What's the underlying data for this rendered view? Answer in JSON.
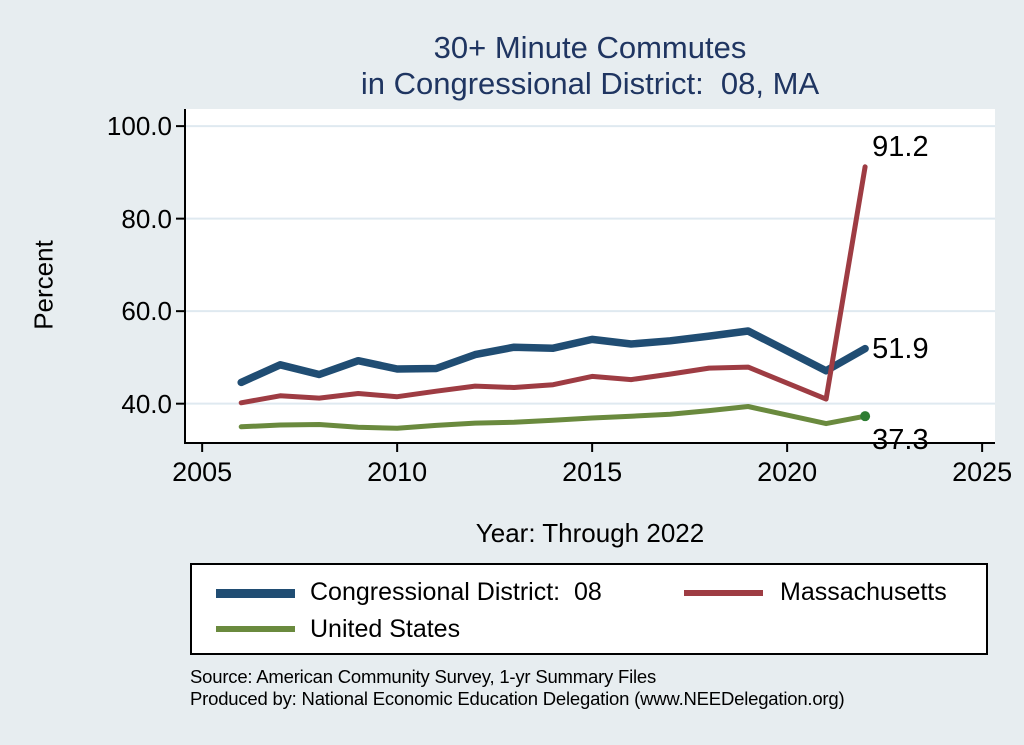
{
  "title": {
    "line1": "30+ Minute Commutes",
    "line2": "in Congressional District:  08, MA",
    "color": "#1f3561"
  },
  "chart_data": {
    "type": "line",
    "x": [
      2006,
      2007,
      2008,
      2009,
      2010,
      2011,
      2012,
      2013,
      2014,
      2015,
      2016,
      2017,
      2018,
      2019,
      2021,
      2022
    ],
    "series": [
      {
        "name": "Congressional District:  08",
        "color": "#204d73",
        "line_width": 7.5,
        "values": [
          44.6,
          48.4,
          46.3,
          49.3,
          47.5,
          47.6,
          50.6,
          52.2,
          52.0,
          53.9,
          52.9,
          53.6,
          54.6,
          55.7,
          47.1,
          51.9
        ],
        "end_label": "51.9"
      },
      {
        "name": "Massachusetts",
        "color": "#9e3c43",
        "line_width": 5,
        "values": [
          40.2,
          41.7,
          41.2,
          42.2,
          41.5,
          42.7,
          43.8,
          43.5,
          44.1,
          45.9,
          45.2,
          46.4,
          47.7,
          47.9,
          41.0,
          91.2
        ],
        "end_label": "91.2"
      },
      {
        "name": "United States",
        "color": "#6a8a3e",
        "line_width": 5,
        "values": [
          35.0,
          35.4,
          35.5,
          34.9,
          34.7,
          35.3,
          35.8,
          36.0,
          36.4,
          36.9,
          37.3,
          37.7,
          38.5,
          39.4,
          35.7,
          37.3
        ],
        "end_label": "37.3",
        "end_dot_color": "#2e7d32"
      }
    ],
    "title": "30+ Minute Commutes in Congressional District: 08, MA",
    "xlabel": "Year: Through 2022",
    "ylabel": "Percent",
    "x_ticks": [
      "2005",
      "2010",
      "2015",
      "2020",
      "2025"
    ],
    "x_tick_values": [
      2005,
      2010,
      2015,
      2020,
      2025
    ],
    "y_ticks": [
      "40.0",
      "60.0",
      "80.0",
      "100.0"
    ],
    "y_tick_values": [
      40,
      60,
      80,
      100
    ],
    "xlim": [
      2004.56,
      2025.33
    ],
    "ylim": [
      31.5,
      103.7
    ],
    "grid": true,
    "grid_color": "#dfe9f0",
    "plot_background": "#ffffff",
    "page_background": "#e7edf0",
    "legend_position": "bottom"
  },
  "legend": {
    "items": [
      {
        "label": "Congressional District:  08"
      },
      {
        "label": "Massachusetts"
      },
      {
        "label": "United States"
      }
    ]
  },
  "source": {
    "line1": "Source: American Community Survey, 1-yr Summary Files",
    "line2": "Produced by: National Economic Education Delegation (www.NEEDelegation.org)"
  }
}
